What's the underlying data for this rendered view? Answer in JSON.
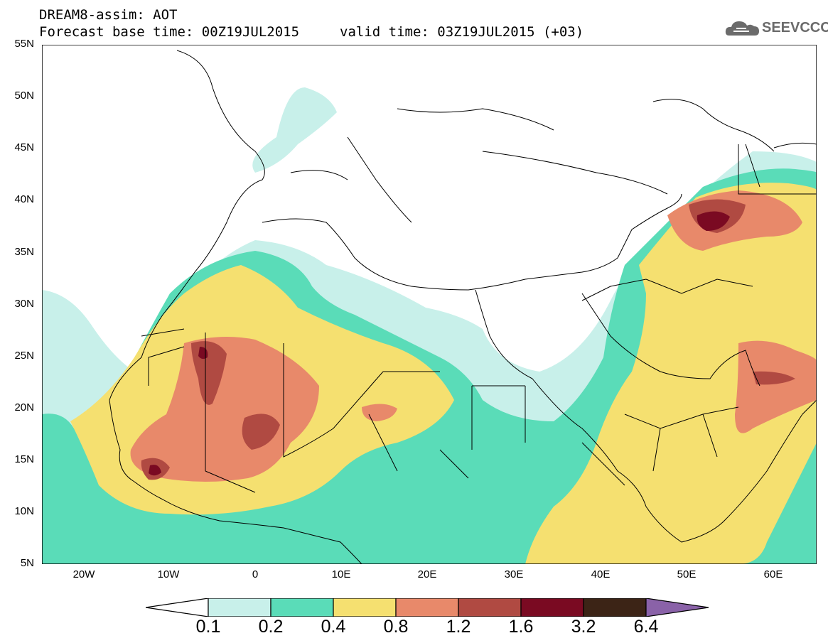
{
  "header": {
    "title": "DREAM8-assim: AOT",
    "base_time": "Forecast base time: 00Z19JUL2015",
    "valid_time": "valid time: 03Z19JUL2015 (+03)"
  },
  "logo": {
    "text": "SEEVCCC",
    "icon": "cloud-icon"
  },
  "axes": {
    "lat_labels": [
      "55N",
      "50N",
      "45N",
      "40N",
      "35N",
      "30N",
      "25N",
      "20N",
      "15N",
      "10N",
      "5N"
    ],
    "lon_labels": [
      "20W",
      "10W",
      "0",
      "10E",
      "20E",
      "30E",
      "40E",
      "50E",
      "60E"
    ]
  },
  "colorbar": {
    "labels": [
      "0.1",
      "0.2",
      "0.4",
      "0.8",
      "1.2",
      "1.6",
      "3.2",
      "6.4"
    ],
    "colors": [
      "#c8f0ea",
      "#5adcb8",
      "#f5e070",
      "#e8896a",
      "#b04a42",
      "#7a0a22",
      "#3c2416",
      "#8a62a8"
    ]
  }
}
